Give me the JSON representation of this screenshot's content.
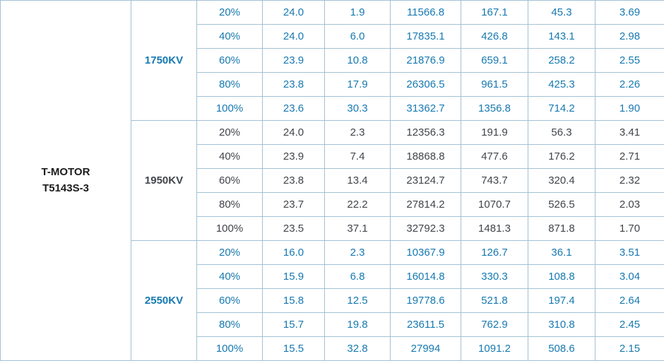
{
  "motor": {
    "line1": "T-MOTOR",
    "line2": "T5143S-3"
  },
  "groups": [
    {
      "kv": "1750KV",
      "text_color": "#1679b1",
      "rows": [
        [
          "20%",
          "24.0",
          "1.9",
          "11566.8",
          "167.1",
          "45.3",
          "3.69"
        ],
        [
          "40%",
          "24.0",
          "6.0",
          "17835.1",
          "426.8",
          "143.1",
          "2.98"
        ],
        [
          "60%",
          "23.9",
          "10.8",
          "21876.9",
          "659.1",
          "258.2",
          "2.55"
        ],
        [
          "80%",
          "23.8",
          "17.9",
          "26306.5",
          "961.5",
          "425.3",
          "2.26"
        ],
        [
          "100%",
          "23.6",
          "30.3",
          "31362.7",
          "1356.8",
          "714.2",
          "1.90"
        ]
      ]
    },
    {
      "kv": "1950KV",
      "text_color": "#414549",
      "rows": [
        [
          "20%",
          "24.0",
          "2.3",
          "12356.3",
          "191.9",
          "56.3",
          "3.41"
        ],
        [
          "40%",
          "23.9",
          "7.4",
          "18868.8",
          "477.6",
          "176.2",
          "2.71"
        ],
        [
          "60%",
          "23.8",
          "13.4",
          "23124.7",
          "743.7",
          "320.4",
          "2.32"
        ],
        [
          "80%",
          "23.7",
          "22.2",
          "27814.2",
          "1070.7",
          "526.5",
          "2.03"
        ],
        [
          "100%",
          "23.5",
          "37.1",
          "32792.3",
          "1481.3",
          "871.8",
          "1.70"
        ]
      ]
    },
    {
      "kv": "2550KV",
      "text_color": "#1679b1",
      "rows": [
        [
          "20%",
          "16.0",
          "2.3",
          "10367.9",
          "126.7",
          "36.1",
          "3.51"
        ],
        [
          "40%",
          "15.9",
          "6.8",
          "16014.8",
          "330.3",
          "108.8",
          "3.04"
        ],
        [
          "60%",
          "15.8",
          "12.5",
          "19778.6",
          "521.8",
          "197.4",
          "2.64"
        ],
        [
          "80%",
          "15.7",
          "19.8",
          "23611.5",
          "762.9",
          "310.8",
          "2.45"
        ],
        [
          "100%",
          "15.5",
          "32.8",
          "27994",
          "1091.2",
          "508.6",
          "2.15"
        ]
      ]
    }
  ],
  "colors": {
    "border": "#a3c0d4",
    "motor_text": "#1b1b1b",
    "background": "#ffffff"
  }
}
